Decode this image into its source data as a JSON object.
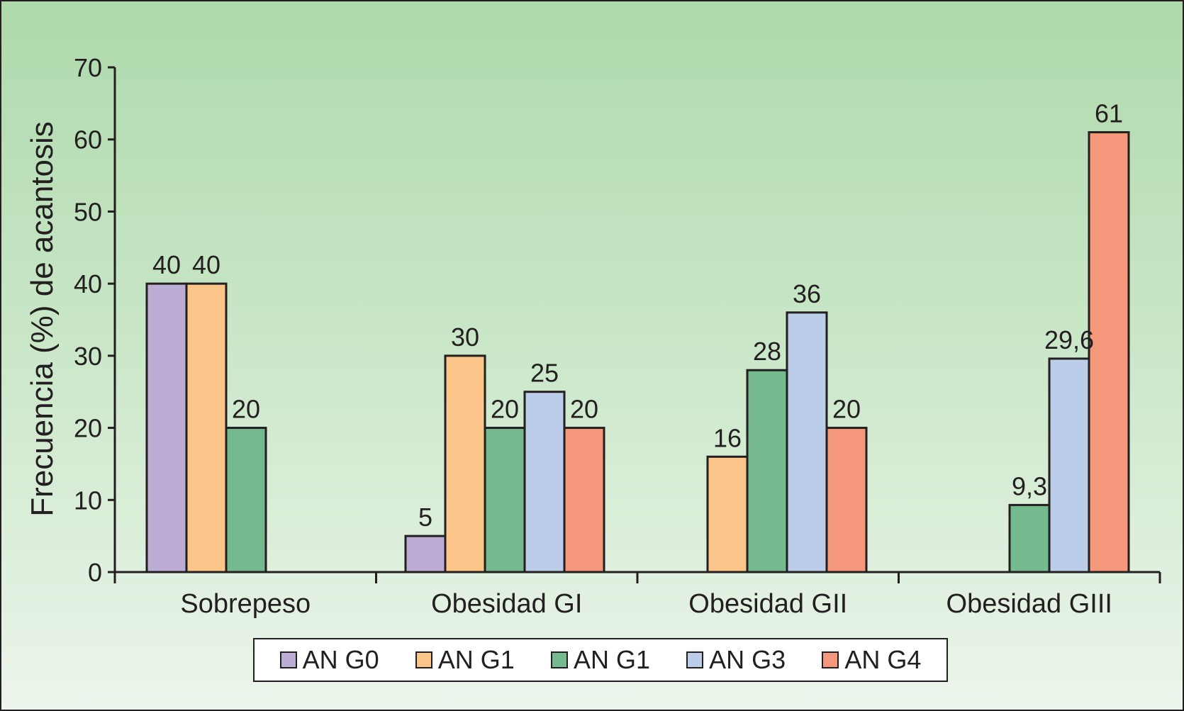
{
  "chart_data": {
    "type": "bar",
    "ylabel": "Frecuencia (%) de acantosis",
    "ylim": [
      0,
      70
    ],
    "yticks": [
      0,
      10,
      20,
      30,
      40,
      50,
      60,
      70
    ],
    "categories": [
      "Sobrepeso",
      "Obesidad GI",
      "Obesidad GII",
      "Obesidad GIII"
    ],
    "series": [
      {
        "name": "AN G0",
        "color": "#bcadd4",
        "values": [
          40,
          5,
          null,
          null
        ],
        "labels": [
          "40",
          "5",
          "",
          ""
        ]
      },
      {
        "name": "AN G1",
        "color": "#fcc68a",
        "values": [
          40,
          30,
          16,
          null
        ],
        "labels": [
          "40",
          "30",
          "16",
          ""
        ]
      },
      {
        "name": "AN G1",
        "color": "#74ba8e",
        "values": [
          20,
          20,
          28,
          9.3
        ],
        "labels": [
          "20",
          "20",
          "28",
          "9,3"
        ]
      },
      {
        "name": "AN G3",
        "color": "#bccde9",
        "values": [
          null,
          25,
          36,
          29.6
        ],
        "labels": [
          "",
          "25",
          "36",
          "29,6"
        ]
      },
      {
        "name": "AN G4",
        "color": "#f5977a",
        "values": [
          null,
          20,
          20,
          61
        ],
        "labels": [
          "",
          "20",
          "20",
          "61"
        ]
      }
    ],
    "grid": false,
    "legend_position": "bottom"
  }
}
